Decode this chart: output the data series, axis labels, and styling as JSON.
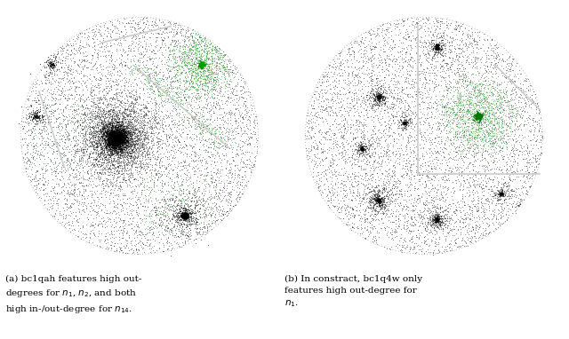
{
  "fig_width": 6.4,
  "fig_height": 3.82,
  "dpi": 100,
  "background_color": "#ffffff",
  "caption_left": "(a) bc1qah features high out-\ndegrees for $n_1$, $n_2$, and both\nhigh in-/out-degree for $n_{14}$.",
  "caption_right": "(b) In constract, bc1q4w only\nfeatures high out-degree for\n$n_1$.",
  "node_color_black": "#111111",
  "node_color_green": "#22aa22",
  "font_size": 7.5
}
